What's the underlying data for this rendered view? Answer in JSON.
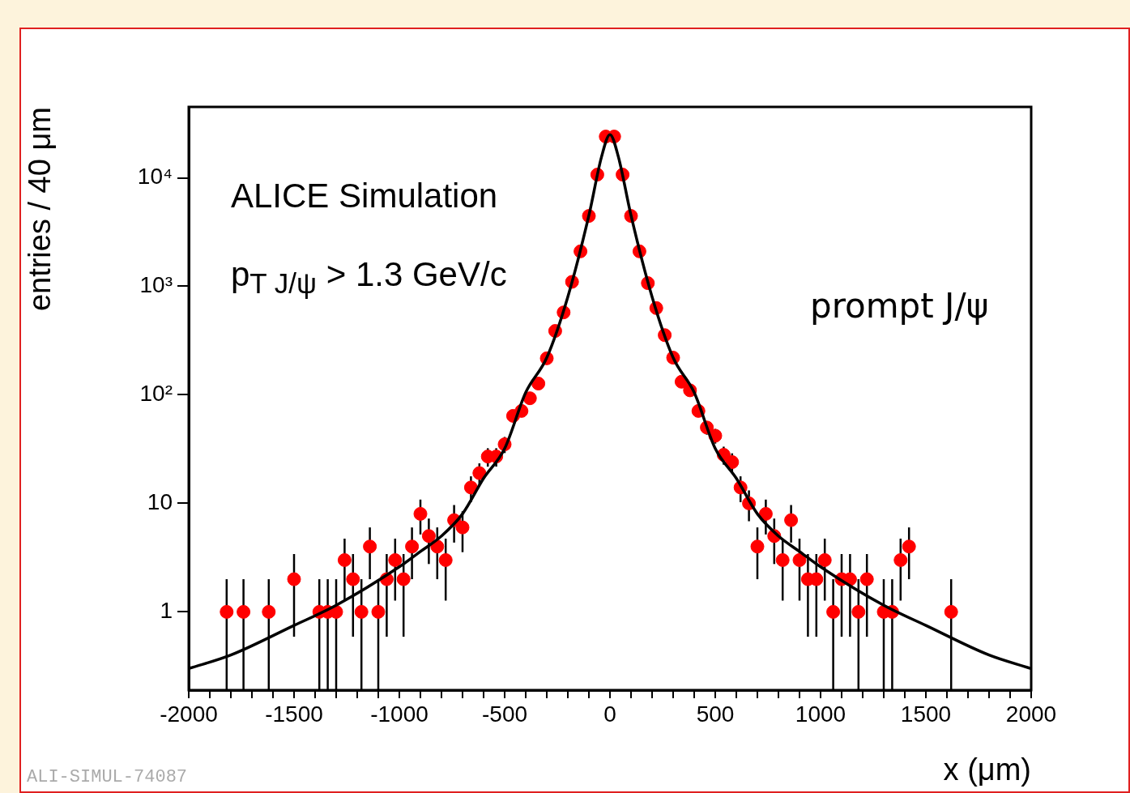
{
  "chart_data": {
    "type": "scatter",
    "xlabel": "x (μm)",
    "ylabel": "entries / 40 μm",
    "annotations": [
      "ALICE Simulation",
      "p$_{T J/ψ}$ > 1.3 GeV/c",
      "prompt  J/ψ",
      "ALI-SIMUL-74087"
    ],
    "series": [
      {
        "type": "scatter",
        "marker": "circle",
        "color": "#ff0000",
        "x": [
          -1820,
          -1740,
          -1620,
          -1500,
          -1380,
          -1340,
          -1300,
          -1260,
          -1220,
          -1180,
          -1140,
          -1100,
          -1060,
          -1020,
          -980,
          -940,
          -900,
          -860,
          -820,
          -780,
          -740,
          -700,
          -660,
          -620,
          -580,
          -540,
          -500,
          -460,
          -420,
          -380,
          -340,
          -300,
          -260,
          -220,
          -180,
          -140,
          -100,
          -60,
          -20,
          20,
          60,
          100,
          140,
          180,
          220,
          260,
          300,
          340,
          380,
          420,
          460,
          500,
          540,
          580,
          620,
          660,
          700,
          740,
          780,
          820,
          860,
          900,
          940,
          980,
          1020,
          1060,
          1100,
          1140,
          1180,
          1220,
          1300,
          1340,
          1380,
          1420,
          1620
        ],
        "values": [
          1,
          1,
          1,
          2,
          1,
          1,
          1,
          3,
          2,
          1,
          4,
          1,
          2,
          3,
          2,
          4,
          8,
          5,
          4,
          3,
          7,
          6,
          14,
          19,
          27,
          27,
          35,
          64,
          71,
          93,
          127,
          217,
          388,
          575,
          1100,
          2100,
          4450,
          10700,
          24000,
          24000,
          10700,
          4450,
          2100,
          1070,
          630,
          355,
          220,
          132,
          110,
          71,
          50,
          42,
          28,
          24,
          14,
          10,
          4,
          8,
          5,
          3,
          7,
          3,
          2,
          2,
          3,
          1,
          2,
          2,
          1,
          2,
          1,
          1,
          3,
          4,
          1
        ],
        "errors": [
          [
            0.19,
            2
          ],
          [
            0.19,
            2
          ],
          [
            0.19,
            2
          ],
          1.41,
          [
            0.19,
            2
          ],
          [
            0.19,
            2
          ],
          [
            0.19,
            2
          ],
          1.73,
          1.41,
          [
            0.19,
            2
          ],
          2,
          [
            0.19,
            2
          ],
          1.41,
          1.73,
          1.41,
          2,
          2.83,
          2.24,
          2,
          1.73,
          2.65,
          2.45,
          3.74,
          4.36,
          5.2,
          5.2,
          5.92,
          8,
          8.43,
          null,
          null,
          null,
          null,
          null,
          null,
          null,
          null,
          null,
          null,
          null,
          null,
          null,
          null,
          null,
          null,
          null,
          null,
          null,
          null,
          8.43,
          7.07,
          6.48,
          5.29,
          4.9,
          3.74,
          3.16,
          2,
          2.83,
          2.24,
          1.73,
          2.65,
          1.73,
          1.41,
          1.41,
          1.73,
          [
            0.19,
            2
          ],
          1.41,
          1.41,
          [
            0.19,
            2
          ],
          1.41,
          [
            0.19,
            2
          ],
          [
            0.19,
            2
          ],
          1.73,
          2,
          [
            0.19,
            2
          ]
        ]
      },
      {
        "type": "line",
        "marker": "none",
        "color": "#000000",
        "x": [
          -2000,
          -1800,
          -1500,
          -1300,
          -1000,
          -900,
          -800,
          -700,
          -600,
          -500,
          -400,
          -300,
          -200,
          -100,
          -40,
          0,
          40,
          100,
          200,
          300,
          400,
          500,
          600,
          700,
          800,
          900,
          1000,
          1300,
          1500,
          1800,
          2000
        ],
        "values": [
          0.3,
          0.4,
          0.75,
          1.15,
          2.6,
          3.6,
          5,
          8,
          17,
          32,
          105,
          220,
          800,
          4500,
          15600,
          25000,
          15600,
          4500,
          800,
          220,
          105,
          32,
          17,
          8,
          5,
          3.6,
          2.6,
          1.15,
          0.75,
          0.4,
          0.3
        ]
      }
    ],
    "xlim": [
      -2000,
      2000
    ],
    "xticks": [
      -2000,
      {
        "value": -1900,
        "label": null
      },
      {
        "value": -1800,
        "label": null
      },
      {
        "value": -1700,
        "label": null
      },
      {
        "value": -1600,
        "label": null
      },
      -1500,
      {
        "value": -1400,
        "label": null
      },
      {
        "value": -1300,
        "label": null
      },
      {
        "value": -1200,
        "label": null
      },
      {
        "value": -1100,
        "label": null
      },
      -1000,
      {
        "value": -900,
        "label": null
      },
      {
        "value": -800,
        "label": null
      },
      {
        "value": -700,
        "label": null
      },
      {
        "value": -600,
        "label": null
      },
      -500,
      {
        "value": -400,
        "label": null
      },
      {
        "value": -300,
        "label": null
      },
      {
        "value": -200,
        "label": null
      },
      {
        "value": -100,
        "label": null
      },
      0,
      {
        "value": 100,
        "label": null
      },
      {
        "value": 200,
        "label": null
      },
      {
        "value": 300,
        "label": null
      },
      {
        "value": 400,
        "label": null
      },
      500,
      {
        "value": 600,
        "label": null
      },
      {
        "value": 700,
        "label": null
      },
      {
        "value": 800,
        "label": null
      },
      {
        "value": 900,
        "label": null
      },
      1000,
      {
        "value": 1100,
        "label": null
      },
      {
        "value": 1200,
        "label": null
      },
      {
        "value": 1300,
        "label": null
      },
      {
        "value": 1400,
        "label": null
      },
      1500,
      {
        "value": 1600,
        "label": null
      },
      {
        "value": 1700,
        "label": null
      },
      {
        "value": 1800,
        "label": null
      },
      {
        "value": 1900,
        "label": null
      },
      2000
    ],
    "ylim": [
      0.19,
      45000
    ],
    "yticks": [
      1,
      10,
      {
        "value": 100,
        "label": "10²"
      },
      {
        "value": 1000,
        "label": "10³"
      },
      {
        "value": 10000,
        "label": "10⁴"
      }
    ],
    "log": "y",
    "legend": false,
    "grid": false
  }
}
